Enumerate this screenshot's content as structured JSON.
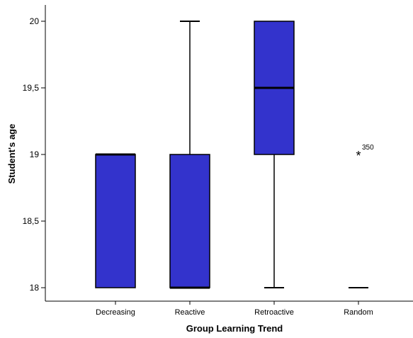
{
  "chart_data": {
    "type": "boxplot",
    "xlabel": "Group Learning Trend",
    "ylabel": "Student's age",
    "ylim": [
      17.95,
      20.05
    ],
    "yticks": [
      18,
      18.5,
      19,
      19.5,
      20
    ],
    "ytick_labels": [
      "18",
      "18,5",
      "19",
      "19,5",
      "20"
    ],
    "box_color": "#3333cc",
    "categories": [
      "Decreasing",
      "Reactive",
      "Retroactive",
      "Random"
    ],
    "boxes": [
      {
        "category": "Decreasing",
        "min": 18,
        "q1": 18,
        "median": 19,
        "q3": 19,
        "max": 19
      },
      {
        "category": "Reactive",
        "min": 18,
        "q1": 18,
        "median": 18,
        "q3": 19,
        "max": 20
      },
      {
        "category": "Retroactive",
        "min": 18,
        "q1": 19,
        "median": 19.5,
        "q3": 20,
        "max": 20
      },
      {
        "category": "Random",
        "min": 18,
        "q1": 18,
        "median": 18,
        "q3": 18,
        "max": 18
      }
    ],
    "outliers": [
      {
        "category": "Random",
        "value": 19,
        "marker": "*",
        "label": "350"
      }
    ]
  }
}
